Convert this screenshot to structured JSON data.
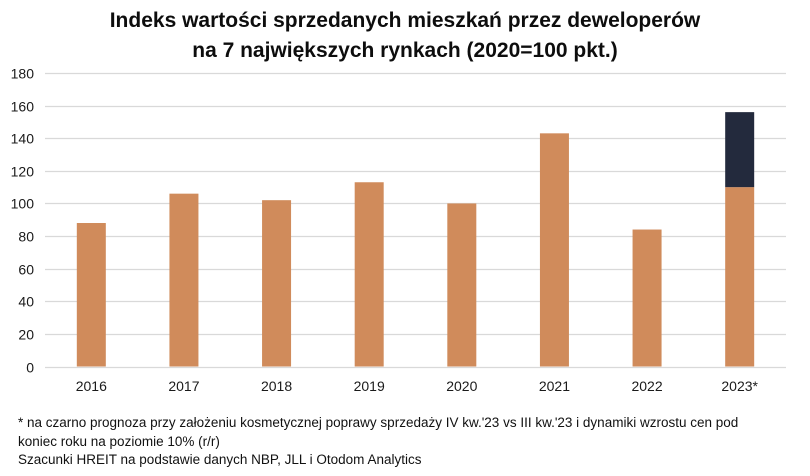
{
  "chart_data": {
    "type": "bar",
    "stacked": true,
    "title_lines": [
      "Indeks wartości sprzedanych mieszkań przez deweloperów",
      "na 7 największych rynkach (2020=100 pkt.)"
    ],
    "categories": [
      "2016",
      "2017",
      "2018",
      "2019",
      "2020",
      "2021",
      "2022",
      "2023*"
    ],
    "series": [
      {
        "name": "Indeks",
        "color": "#d08b5b",
        "values": [
          88,
          106,
          102,
          113,
          100,
          143,
          84,
          110
        ]
      },
      {
        "name": "Prognoza",
        "color": "#232a3d",
        "values": [
          0,
          0,
          0,
          0,
          0,
          0,
          0,
          46
        ]
      }
    ],
    "xlabel": "",
    "ylabel": "",
    "ylim": [
      0,
      180
    ],
    "yticks": [
      0,
      20,
      40,
      60,
      80,
      100,
      120,
      140,
      160,
      180
    ],
    "grid": true,
    "legend": "none",
    "gridline_color": "#d9d9d9"
  },
  "notes": {
    "footnote_line1": "* na czarno prognoza przy założeniu kosmetycznej poprawy sprzedaży IV kw.'23 vs III kw.'23 i dynamiki wzrostu cen pod",
    "footnote_line2": "koniec roku na poziomie 10% (r/r)",
    "source": "Szacunki HREIT na podstawie danych NBP, JLL i Otodom Analytics"
  }
}
